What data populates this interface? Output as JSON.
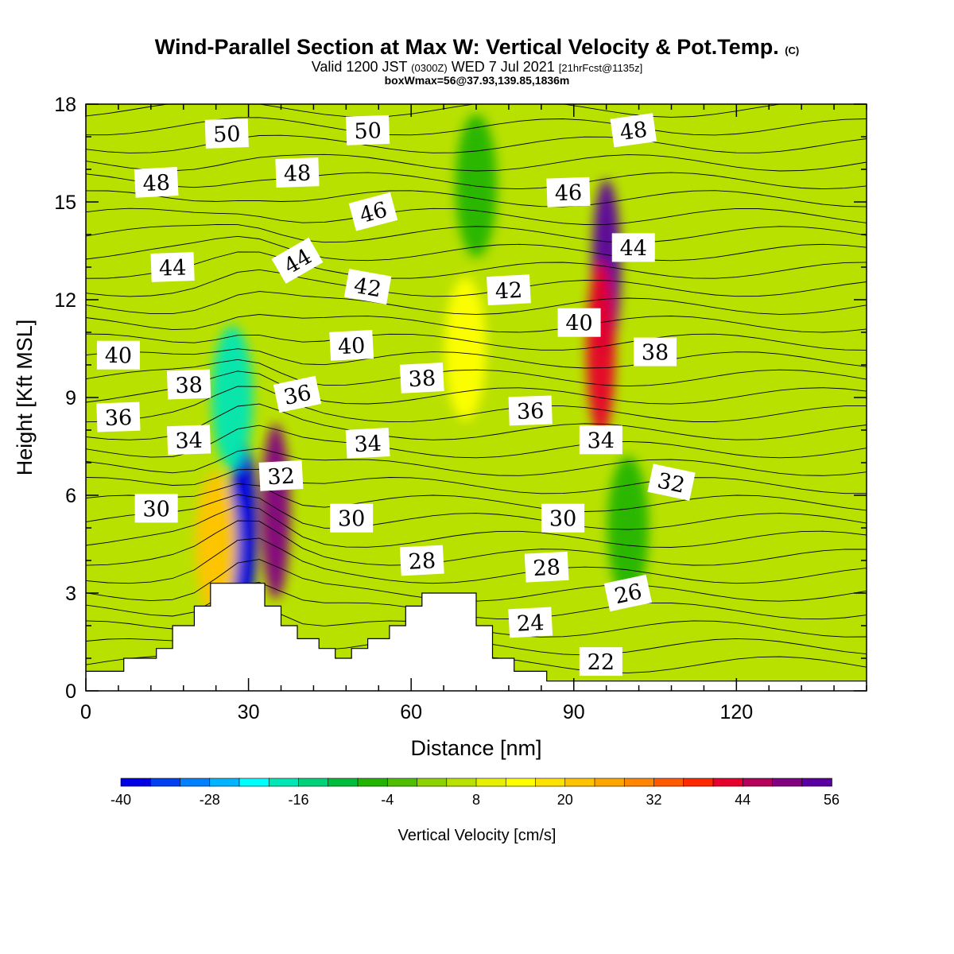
{
  "header": {
    "title": "Wind-Parallel Section at Max W: Vertical Velocity & Pot.Temp.",
    "copyright": "(C)",
    "valid_prefix": "Valid 1200 JST",
    "valid_utc": "(0300Z)",
    "valid_date": "WED 7 Jul 2021",
    "forecast": "[21hrFcst@1135z]",
    "box_wmax": "boxWmax=56@37.93,139.85,1836m"
  },
  "chart_data": {
    "type": "heatmap",
    "xlabel": "Distance [nm]",
    "ylabel": "Height [Kft MSL]",
    "xlim": [
      0,
      144
    ],
    "ylim": [
      0,
      18
    ],
    "xticks": [
      0,
      30,
      60,
      90,
      120
    ],
    "yticks": [
      0,
      3,
      6,
      9,
      12,
      15,
      18
    ],
    "colorbar": {
      "title": "Vertical Velocity [cm/s]",
      "range": [
        -40,
        56
      ],
      "step": 4,
      "labels": [
        -40,
        -28,
        -16,
        -4,
        8,
        20,
        32,
        44,
        56
      ],
      "colors": [
        "#0000e6",
        "#0040f0",
        "#0080ff",
        "#00b4ff",
        "#00ffff",
        "#00e6b4",
        "#00d27a",
        "#00be3c",
        "#22b400",
        "#50be00",
        "#8cd200",
        "#b9e100",
        "#e6f000",
        "#ffff00",
        "#ffe100",
        "#ffc300",
        "#ffa500",
        "#ff8700",
        "#ff5a00",
        "#ff2800",
        "#e6002d",
        "#b4005a",
        "#820082",
        "#5a00a0"
      ]
    },
    "vertical_velocity_cells": [
      {
        "x": 29,
        "y": 5.0,
        "w": -40
      },
      {
        "x": 27,
        "y": 9.0,
        "w": -20
      },
      {
        "x": 35,
        "y": 5.5,
        "w": 50
      },
      {
        "x": 24,
        "y": 4.5,
        "w": 20
      },
      {
        "x": 96,
        "y": 13.0,
        "w": 56
      },
      {
        "x": 95,
        "y": 10.5,
        "w": 40
      },
      {
        "x": 72,
        "y": 15.5,
        "w": -8
      },
      {
        "x": 100,
        "y": 5.0,
        "w": -8
      },
      {
        "x": 70,
        "y": 10.5,
        "w": 12
      }
    ],
    "terrain": [
      [
        0,
        0.6
      ],
      [
        7,
        0.6
      ],
      [
        7,
        1.0
      ],
      [
        13,
        1.0
      ],
      [
        13,
        1.3
      ],
      [
        16,
        1.3
      ],
      [
        16,
        2.0
      ],
      [
        20,
        2.0
      ],
      [
        20,
        2.6
      ],
      [
        23,
        2.6
      ],
      [
        23,
        3.3
      ],
      [
        33,
        3.3
      ],
      [
        33,
        2.6
      ],
      [
        36,
        2.6
      ],
      [
        36,
        2.0
      ],
      [
        39,
        2.0
      ],
      [
        39,
        1.6
      ],
      [
        43,
        1.6
      ],
      [
        43,
        1.3
      ],
      [
        46,
        1.3
      ],
      [
        46,
        1.0
      ],
      [
        49,
        1.0
      ],
      [
        49,
        1.3
      ],
      [
        52,
        1.3
      ],
      [
        52,
        1.6
      ],
      [
        56,
        1.6
      ],
      [
        56,
        2.0
      ],
      [
        59,
        2.0
      ],
      [
        59,
        2.6
      ],
      [
        62,
        2.6
      ],
      [
        62,
        3.0
      ],
      [
        72,
        3.0
      ],
      [
        72,
        2.0
      ],
      [
        75,
        2.0
      ],
      [
        75,
        1.0
      ],
      [
        79,
        1.0
      ],
      [
        79,
        0.6
      ],
      [
        85,
        0.6
      ],
      [
        85,
        0.3
      ],
      [
        144,
        0.3
      ]
    ],
    "potential_temperature_labels": [
      {
        "text": "50",
        "x": 26,
        "y": 17.1,
        "rot": -2
      },
      {
        "text": "50",
        "x": 52,
        "y": 17.2,
        "rot": -2
      },
      {
        "text": "48",
        "x": 13,
        "y": 15.6,
        "rot": -3
      },
      {
        "text": "48",
        "x": 39,
        "y": 15.9,
        "rot": -2
      },
      {
        "text": "46",
        "x": 53,
        "y": 14.7,
        "rot": -15
      },
      {
        "text": "46",
        "x": 89,
        "y": 15.3,
        "rot": -2
      },
      {
        "text": "48",
        "x": 101,
        "y": 17.2,
        "rot": -8
      },
      {
        "text": "44",
        "x": 16,
        "y": 13.0,
        "rot": -2
      },
      {
        "text": "44",
        "x": 39,
        "y": 13.2,
        "rot": -30
      },
      {
        "text": "44",
        "x": 101,
        "y": 13.6,
        "rot": 0
      },
      {
        "text": "42",
        "x": 52,
        "y": 12.4,
        "rot": 10
      },
      {
        "text": "42",
        "x": 78,
        "y": 12.3,
        "rot": -3
      },
      {
        "text": "40",
        "x": 91,
        "y": 11.3,
        "rot": 0
      },
      {
        "text": "40",
        "x": 49,
        "y": 10.6,
        "rot": -3
      },
      {
        "text": "40",
        "x": 6,
        "y": 10.3,
        "rot": 0
      },
      {
        "text": "38",
        "x": 105,
        "y": 10.4,
        "rot": 0
      },
      {
        "text": "38",
        "x": 62,
        "y": 9.6,
        "rot": -3
      },
      {
        "text": "38",
        "x": 19,
        "y": 9.4,
        "rot": -2
      },
      {
        "text": "36",
        "x": 39,
        "y": 9.1,
        "rot": -12
      },
      {
        "text": "36",
        "x": 82,
        "y": 8.6,
        "rot": -2
      },
      {
        "text": "36",
        "x": 6,
        "y": 8.4,
        "rot": -2
      },
      {
        "text": "34",
        "x": 19,
        "y": 7.7,
        "rot": -2
      },
      {
        "text": "34",
        "x": 52,
        "y": 7.6,
        "rot": -3
      },
      {
        "text": "34",
        "x": 95,
        "y": 7.7,
        "rot": 0
      },
      {
        "text": "32",
        "x": 36,
        "y": 6.6,
        "rot": -3
      },
      {
        "text": "32",
        "x": 108,
        "y": 6.4,
        "rot": 12
      },
      {
        "text": "30",
        "x": 13,
        "y": 5.6,
        "rot": 0
      },
      {
        "text": "30",
        "x": 49,
        "y": 5.3,
        "rot": 0
      },
      {
        "text": "30",
        "x": 88,
        "y": 5.3,
        "rot": 0
      },
      {
        "text": "28",
        "x": 62,
        "y": 4.0,
        "rot": -3
      },
      {
        "text": "28",
        "x": 85,
        "y": 3.8,
        "rot": -3
      },
      {
        "text": "26",
        "x": 100,
        "y": 3.0,
        "rot": -12
      },
      {
        "text": "24",
        "x": 82,
        "y": 2.1,
        "rot": -3
      },
      {
        "text": "22",
        "x": 95,
        "y": 0.9,
        "rot": 0
      }
    ]
  }
}
